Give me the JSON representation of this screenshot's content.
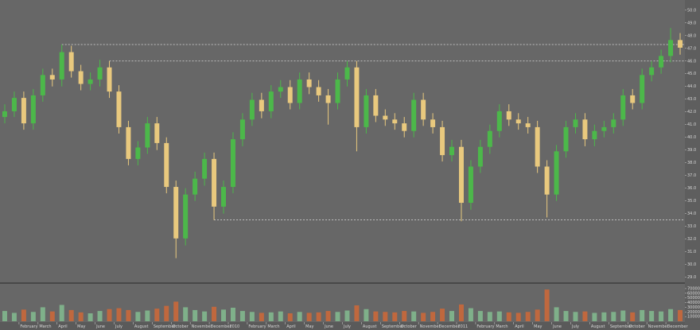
{
  "chart_data": {
    "type": "candlestick",
    "categories": [
      null,
      null,
      "February",
      null,
      "March",
      null,
      "April",
      null,
      "May",
      null,
      "June",
      null,
      "July",
      null,
      "August",
      null,
      "September",
      null,
      "October",
      null,
      "November",
      null,
      "December",
      null,
      "2010",
      null,
      "February",
      null,
      "March",
      null,
      "April",
      null,
      "May",
      null,
      "June",
      null,
      "July",
      null,
      "August",
      null,
      "September",
      null,
      "October",
      null,
      "November",
      null,
      "December",
      null,
      "2011",
      null,
      "February",
      null,
      "March",
      null,
      "April",
      null,
      "May",
      null,
      "June",
      null,
      "July",
      null,
      "August",
      null,
      "September",
      null,
      "October",
      null,
      "November",
      null,
      "December",
      null
    ],
    "open": [
      41.6,
      42.05,
      43.1,
      41.1,
      43.3,
      44.9,
      44.55,
      46.7,
      45.2,
      44.2,
      44.55,
      45.5,
      43.6,
      40.8,
      38.3,
      39.2,
      41.1,
      39.55,
      36.1,
      32.05,
      35.5,
      36.75,
      38.3,
      34.55,
      36.1,
      39.85,
      41.4,
      42.95,
      42.05,
      43.6,
      43.95,
      42.7,
      44.55,
      43.95,
      43.3,
      42.7,
      44.55,
      45.5,
      40.8,
      43.3,
      41.7,
      41.4,
      41.1,
      40.5,
      42.95,
      41.4,
      40.8,
      38.6,
      39.25,
      34.85,
      37.7,
      39.25,
      40.5,
      42.05,
      41.4,
      41.1,
      40.8,
      37.7,
      35.5,
      38.9,
      40.8,
      41.4,
      39.85,
      40.5,
      40.8,
      41.4,
      43.3,
      42.7,
      44.9,
      45.5,
      46.4,
      47.65
    ],
    "high": [
      42.6,
      43.6,
      43.6,
      43.8,
      45.4,
      45.4,
      47.3,
      47.2,
      45.7,
      45.1,
      46.1,
      46.0,
      44.1,
      41.3,
      39.7,
      41.6,
      41.6,
      40.0,
      36.6,
      36.0,
      37.3,
      38.8,
      38.8,
      36.6,
      40.4,
      41.9,
      43.5,
      43.5,
      44.1,
      44.5,
      44.5,
      45.1,
      45.1,
      44.5,
      43.8,
      45.1,
      46.0,
      46.0,
      43.8,
      43.8,
      42.2,
      41.9,
      41.6,
      43.5,
      43.5,
      41.9,
      41.3,
      39.8,
      39.8,
      38.2,
      39.8,
      41.0,
      42.6,
      42.6,
      41.9,
      41.6,
      41.3,
      38.2,
      39.4,
      41.3,
      41.9,
      41.9,
      41.0,
      41.3,
      41.9,
      43.8,
      43.8,
      45.4,
      46.0,
      46.9,
      48.6,
      48.2
    ],
    "low": [
      41.1,
      41.6,
      40.6,
      40.6,
      42.8,
      44.0,
      44.0,
      44.7,
      43.7,
      43.7,
      44.0,
      43.1,
      40.3,
      37.8,
      37.8,
      38.7,
      39.0,
      35.6,
      30.5,
      31.5,
      35.0,
      36.2,
      33.5,
      34.0,
      35.6,
      39.3,
      40.9,
      41.5,
      41.5,
      43.1,
      42.2,
      42.2,
      43.4,
      42.8,
      41.0,
      42.2,
      44.0,
      38.9,
      40.3,
      41.2,
      40.9,
      40.6,
      40.0,
      40.0,
      40.9,
      40.3,
      38.1,
      38.1,
      33.4,
      34.3,
      37.2,
      38.7,
      40.0,
      40.9,
      40.6,
      40.3,
      37.2,
      33.7,
      35.0,
      38.4,
      40.3,
      39.3,
      39.3,
      40.0,
      40.3,
      40.9,
      42.2,
      42.2,
      44.4,
      45.0,
      45.9,
      46.5
    ],
    "close": [
      42.05,
      43.1,
      41.1,
      43.3,
      44.9,
      44.55,
      46.7,
      45.2,
      44.2,
      44.55,
      45.5,
      43.6,
      40.8,
      38.3,
      39.2,
      41.1,
      39.55,
      36.1,
      32.05,
      35.5,
      36.75,
      38.3,
      34.55,
      36.1,
      39.85,
      41.4,
      42.95,
      42.05,
      43.6,
      43.95,
      42.7,
      44.55,
      43.95,
      43.3,
      42.7,
      44.55,
      45.5,
      40.8,
      43.3,
      41.7,
      41.4,
      41.1,
      40.5,
      42.95,
      41.4,
      40.8,
      38.6,
      39.25,
      34.85,
      37.7,
      39.25,
      40.5,
      42.05,
      41.4,
      41.1,
      40.8,
      37.7,
      35.5,
      38.9,
      40.8,
      41.4,
      39.85,
      40.5,
      40.8,
      41.4,
      43.3,
      42.7,
      44.9,
      45.5,
      46.4,
      47.65,
      47.05
    ],
    "volume": [
      22000,
      18000,
      25000,
      20000,
      30000,
      21000,
      35000,
      24000,
      19000,
      17000,
      22000,
      26000,
      28000,
      24000,
      20000,
      23000,
      27000,
      33000,
      42000,
      30000,
      24000,
      21000,
      31000,
      25000,
      29000,
      22000,
      20000,
      18000,
      19000,
      21000,
      17000,
      20000,
      18000,
      19000,
      22000,
      20000,
      23000,
      34000,
      26000,
      21000,
      20000,
      19000,
      22000,
      21000,
      18000,
      20000,
      27000,
      22000,
      36000,
      28000,
      22000,
      20000,
      21000,
      19000,
      18000,
      20000,
      25000,
      68000,
      30000,
      22000,
      20000,
      21000,
      18000,
      19000,
      20000,
      23000,
      19000,
      24000,
      22000,
      21000,
      26000,
      24000
    ],
    "up_color": "#4cb84a",
    "down_color": "#e9c97e",
    "volume_up_color": "#7fb08a",
    "volume_down_color": "#c0683e",
    "reference_lines": [
      47.3,
      46.0,
      33.5
    ],
    "ylim": [
      28.6,
      50.8
    ],
    "yticks": [
      {
        "value": 29,
        "label": "29.0"
      },
      {
        "value": 30,
        "label": "30.0"
      },
      {
        "value": 31,
        "label": "31.0"
      },
      {
        "value": 32,
        "label": "32.0"
      },
      {
        "value": 33,
        "label": "33.0"
      },
      {
        "value": 34,
        "label": "34.0"
      },
      {
        "value": 35,
        "label": "35.0"
      },
      {
        "value": 36,
        "label": "36.0"
      },
      {
        "value": 37,
        "label": "37.0"
      },
      {
        "value": 38,
        "label": "38.0"
      },
      {
        "value": 39,
        "label": "39.0"
      },
      {
        "value": 40,
        "label": "40.0"
      },
      {
        "value": 41,
        "label": "41.0"
      },
      {
        "value": 42,
        "label": "42.0"
      },
      {
        "value": 43,
        "label": "43.0"
      },
      {
        "value": 44,
        "label": "44.0"
      },
      {
        "value": 45,
        "label": "45.0"
      },
      {
        "value": 46,
        "label": "46.0"
      },
      {
        "value": 47,
        "label": "47.0"
      },
      {
        "value": 48,
        "label": "48.0"
      },
      {
        "value": 49,
        "label": "49.0"
      },
      {
        "value": 50,
        "label": "50.0"
      }
    ],
    "vlim": [
      0,
      75000
    ],
    "vticks": [
      10000,
      20000,
      30000,
      40000,
      50000,
      60000,
      70000
    ]
  }
}
